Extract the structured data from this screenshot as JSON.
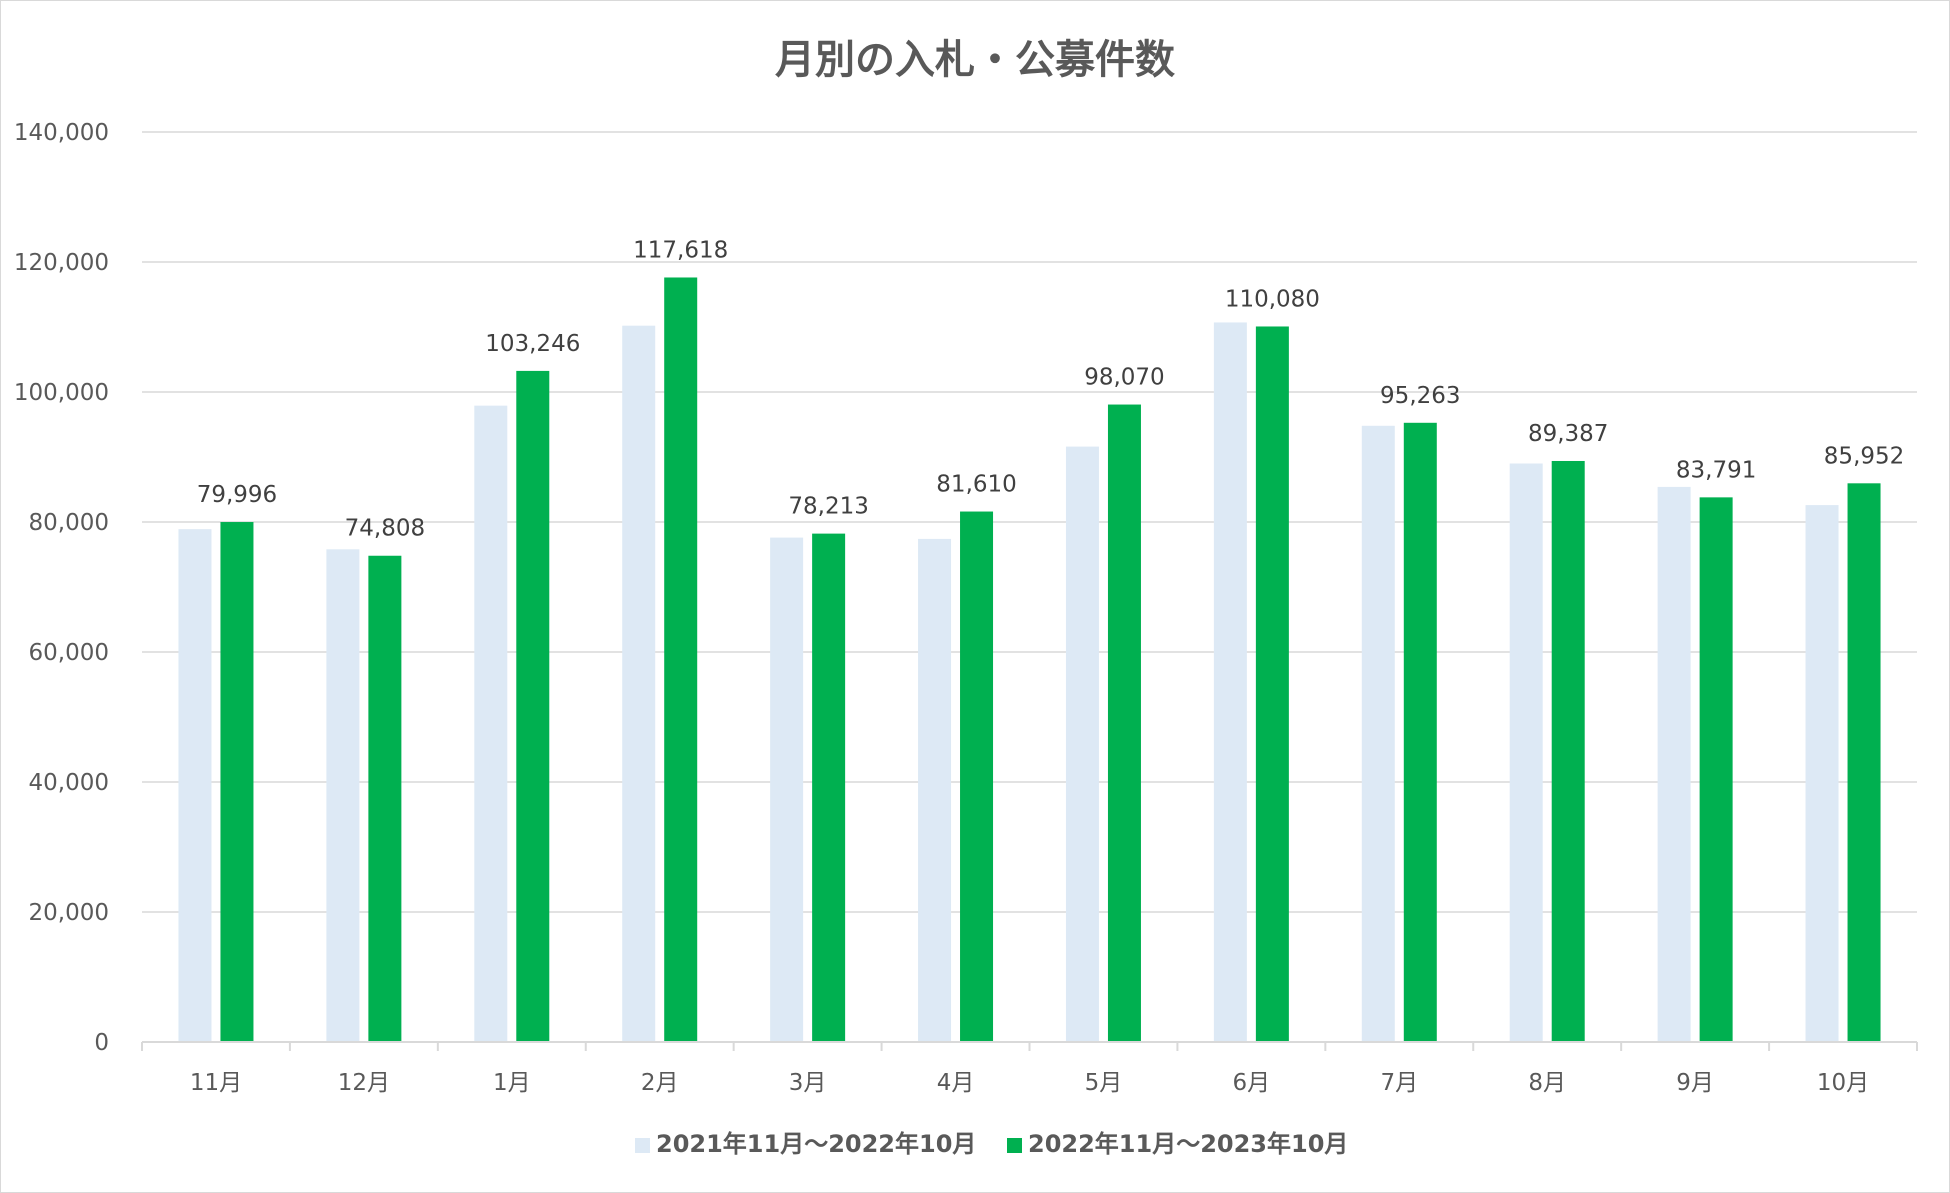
{
  "chart_data": {
    "type": "bar",
    "title": "月別の入札・公募件数",
    "xlabel": "",
    "ylabel": "",
    "categories": [
      "11月",
      "12月",
      "1月",
      "2月",
      "3月",
      "4月",
      "5月",
      "6月",
      "7月",
      "8月",
      "9月",
      "10月"
    ],
    "series": [
      {
        "name": "2021年11月～2022年10月",
        "color": "#dde9f5",
        "values": [
          78900,
          75800,
          97900,
          110200,
          77600,
          77400,
          91600,
          110700,
          94800,
          89000,
          85400,
          82600
        ],
        "show_labels": false
      },
      {
        "name": "2022年11月～2023年10月",
        "color": "#00b050",
        "values": [
          79996,
          74808,
          103246,
          117618,
          78213,
          81610,
          98070,
          110080,
          95263,
          89387,
          83791,
          85952
        ],
        "show_labels": true
      }
    ],
    "ylim": [
      0,
      140000
    ],
    "ytick_step": 20000,
    "grid": true,
    "legend_position": "bottom"
  }
}
